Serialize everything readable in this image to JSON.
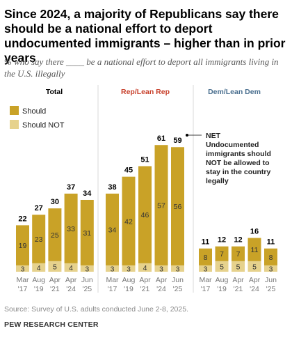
{
  "title": "Since 2024, a majority of Republicans say there should be a national effort to deport undocumented immigrants – higher than in prior years",
  "subtitle": "% who say there ____ be a national effort to deport all immigrants living in the U.S. illegally",
  "source": "Source: Survey of U.S. adults conducted June 2-8, 2025.",
  "brand": "PEW RESEARCH CENTER",
  "colors": {
    "should": "#c9a227",
    "should_not": "#e6d28d",
    "rep_header": "#c8412c",
    "dem_header": "#4a6f8f",
    "total_header": "#000000",
    "divider": "#d9d9d9",
    "axis_text": "#777777"
  },
  "legend": [
    "Should",
    "Should NOT"
  ],
  "annotation": "NET Undocumented immigrants should NOT be allowed to stay in the country legally",
  "chart_data": {
    "type": "bar",
    "stacked": true,
    "categories": [
      "Mar '17",
      "Aug '19",
      "Apr '21",
      "Apr '24",
      "Jun '25"
    ],
    "category_lines": [
      [
        "Mar",
        "'17"
      ],
      [
        "Aug",
        "'19"
      ],
      [
        "Apr",
        "'21"
      ],
      [
        "Apr",
        "'24"
      ],
      [
        "Jun",
        "'25"
      ]
    ],
    "panels": [
      {
        "name": "Total",
        "series": [
          {
            "name": "Should NOT",
            "values": [
              3,
              4,
              5,
              4,
              3
            ]
          },
          {
            "name": "Should",
            "values": [
              19,
              23,
              25,
              33,
              31
            ]
          }
        ],
        "net": [
          22,
          27,
          30,
          37,
          34
        ]
      },
      {
        "name": "Rep/Lean Rep",
        "series": [
          {
            "name": "Should NOT",
            "values": [
              3,
              3,
              4,
              3,
              3
            ]
          },
          {
            "name": "Should",
            "values": [
              34,
              42,
              46,
              57,
              56
            ]
          }
        ],
        "net": [
          38,
          45,
          51,
          61,
          59
        ]
      },
      {
        "name": "Dem/Lean Dem",
        "series": [
          {
            "name": "Should NOT",
            "values": [
              3,
              5,
              5,
              5,
              3
            ]
          },
          {
            "name": "Should",
            "values": [
              8,
              7,
              7,
              11,
              8
            ]
          }
        ],
        "net": [
          11,
          12,
          12,
          16,
          11
        ]
      }
    ]
  }
}
